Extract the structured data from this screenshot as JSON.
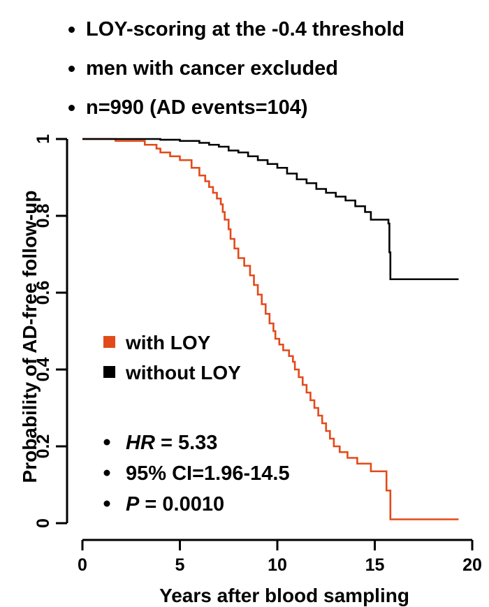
{
  "header": {
    "bullets": [
      "LOY-scoring at the -0.4 threshold",
      "men with cancer excluded",
      "n=990 (AD events=104)"
    ]
  },
  "stats": [
    {
      "italic": "HR",
      "rest": " = 5.33"
    },
    {
      "italic": "",
      "rest": "95% CI=1.96-14.5"
    },
    {
      "italic": "P",
      "rest": " = 0.0010"
    }
  ],
  "colors": {
    "with_loy": "#e34a1a",
    "without_loy": "#000000"
  },
  "chart_data": {
    "type": "line",
    "title": "",
    "xlabel": "Years after blood sampling",
    "ylabel": "Probability of AD-free follow-up",
    "xlim": [
      0,
      20
    ],
    "ylim": [
      0,
      1
    ],
    "xticks": [
      0,
      5,
      10,
      15,
      20
    ],
    "yticks": [
      {
        "value": 0,
        "label": "0"
      },
      {
        "value": 0.2,
        "label": "0.2"
      },
      {
        "value": 0.4,
        "label": "0.4"
      },
      {
        "value": 0.6,
        "label": "0.6"
      },
      {
        "value": 0.8,
        "label": "0.8"
      },
      {
        "value": 1,
        "label": "1"
      }
    ],
    "grid": false,
    "legend_position": "center-left",
    "step": true,
    "series": [
      {
        "name": "with LOY",
        "color": "#e34a1a",
        "x": [
          0,
          1.7,
          3.2,
          3.8,
          4.0,
          4.5,
          5.0,
          5.6,
          6.0,
          6.3,
          6.5,
          6.7,
          6.9,
          7.1,
          7.2,
          7.3,
          7.5,
          7.6,
          7.8,
          8.0,
          8.3,
          8.6,
          8.8,
          9.0,
          9.2,
          9.4,
          9.6,
          9.8,
          9.9,
          10.1,
          10.3,
          10.6,
          10.8,
          10.9,
          11.1,
          11.3,
          11.5,
          11.7,
          11.9,
          12.1,
          12.3,
          12.5,
          12.7,
          12.9,
          13.2,
          13.6,
          14.1,
          14.8,
          15.6,
          15.8,
          19.3
        ],
        "y": [
          1.0,
          0.995,
          0.985,
          0.975,
          0.965,
          0.955,
          0.945,
          0.925,
          0.905,
          0.89,
          0.875,
          0.86,
          0.845,
          0.83,
          0.81,
          0.79,
          0.765,
          0.74,
          0.715,
          0.69,
          0.67,
          0.645,
          0.62,
          0.595,
          0.57,
          0.545,
          0.52,
          0.5,
          0.48,
          0.465,
          0.45,
          0.435,
          0.42,
          0.4,
          0.38,
          0.36,
          0.34,
          0.32,
          0.3,
          0.28,
          0.26,
          0.24,
          0.22,
          0.2,
          0.185,
          0.17,
          0.155,
          0.135,
          0.085,
          0.01,
          0.01
        ]
      },
      {
        "name": "without LOY",
        "color": "#000000",
        "x": [
          0,
          4.0,
          5.0,
          6.0,
          6.5,
          7.0,
          7.5,
          8.0,
          8.5,
          9.0,
          9.5,
          10.0,
          10.5,
          11.0,
          11.5,
          12.0,
          12.5,
          13.0,
          13.5,
          14.0,
          14.5,
          14.8,
          15.7,
          15.75,
          15.8,
          19.3
        ],
        "y": [
          1.0,
          0.998,
          0.995,
          0.99,
          0.985,
          0.98,
          0.97,
          0.965,
          0.955,
          0.945,
          0.935,
          0.925,
          0.91,
          0.895,
          0.885,
          0.87,
          0.86,
          0.85,
          0.84,
          0.825,
          0.81,
          0.79,
          0.78,
          0.705,
          0.635,
          0.635
        ]
      }
    ]
  }
}
